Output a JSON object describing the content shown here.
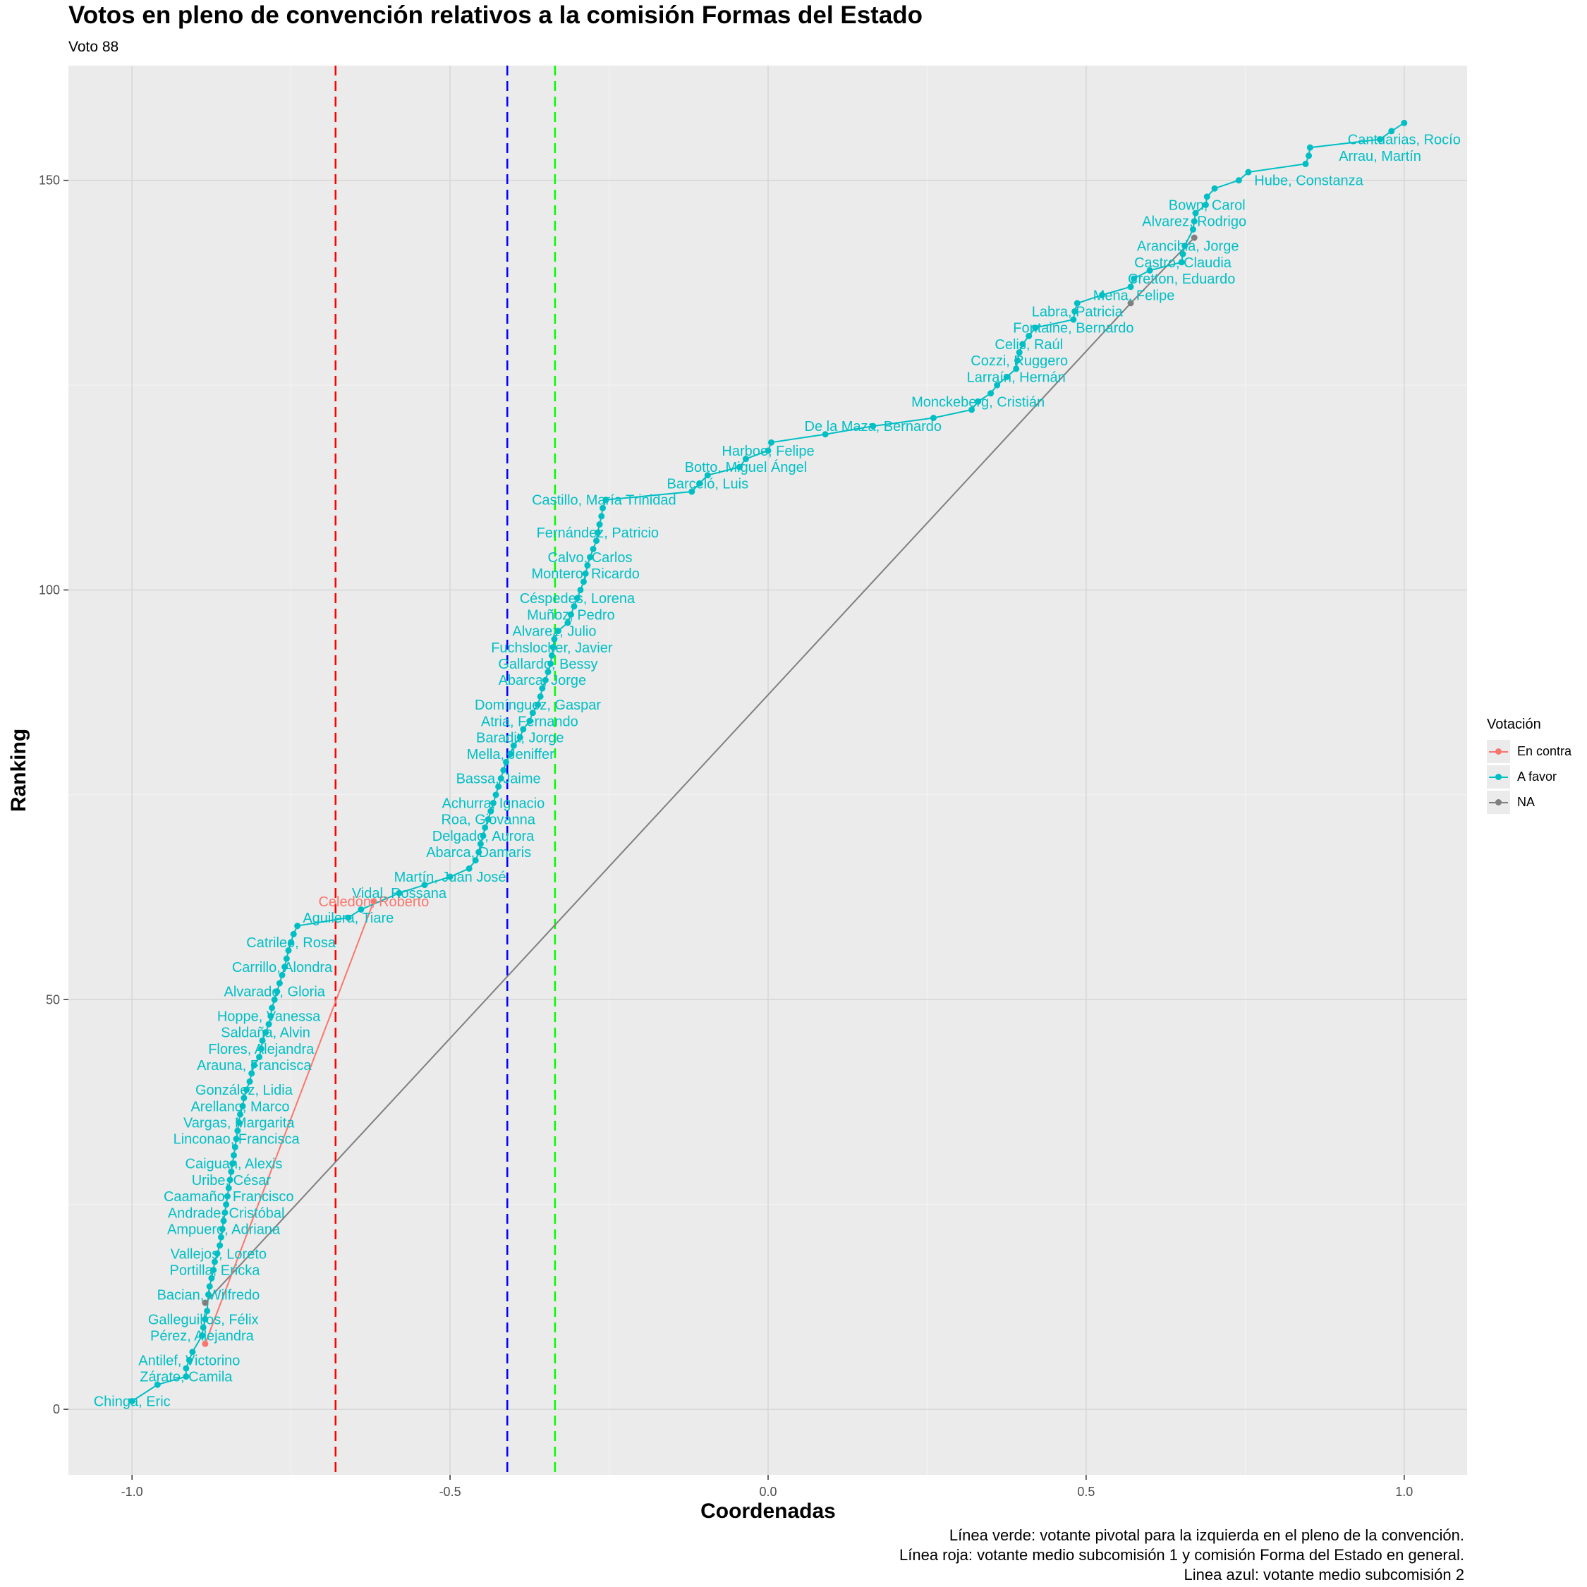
{
  "title": "Votos en pleno de convención relativos a la comisión Formas del Estado",
  "subtitle": "Voto 88",
  "caption": [
    "Línea verde: votante pivotal para la izquierda en el pleno de la convención.",
    "Línea roja: votante medio subcomisión 1 y comisión Forma del Estado en general.",
    "Linea azul: votante medio subcomisión 2"
  ],
  "legend": {
    "title": "Votación",
    "items": [
      {
        "label": "En contra",
        "color": "#f8766d"
      },
      {
        "label": "A favor",
        "color": "#00bfc4"
      },
      {
        "label": "NA",
        "color": "#7f7f7f"
      }
    ]
  },
  "colors": {
    "panel": "#ebebeb",
    "grid": "#ffffff",
    "red_line": "#ff0000",
    "blue_line": "#0000ff",
    "green_line": "#00ff00"
  },
  "chart_data": {
    "type": "scatter",
    "xlabel": "Coordenadas",
    "ylabel": "Ranking",
    "xlim": [
      -1.1,
      1.1
    ],
    "ylim": [
      -8,
      164
    ],
    "x_ticks": [
      -1.0,
      -0.5,
      0.0,
      0.5,
      1.0
    ],
    "x_tick_labels": [
      "-1.0",
      "-0.5",
      "0.0",
      "0.5",
      "1.0"
    ],
    "y_ticks": [
      0,
      50,
      100,
      150
    ],
    "y_tick_labels": [
      "0",
      "50",
      "100",
      "150"
    ],
    "vlines": [
      {
        "x": -0.68,
        "color": "#ff0000"
      },
      {
        "x": -0.41,
        "color": "#0000ff"
      },
      {
        "x": -0.335,
        "color": "#00ff00"
      }
    ],
    "legend_position": "right",
    "series": [
      {
        "name": "En contra",
        "color": "#f8766d",
        "points": [
          [
            -0.885,
            8
          ],
          [
            -0.62,
            62
          ]
        ],
        "labels": [
          {
            "x": -0.62,
            "y": 62,
            "text": "Celedón, Roberto"
          }
        ]
      },
      {
        "name": "NA",
        "color": "#7f7f7f",
        "points": [
          [
            -0.885,
            13
          ],
          [
            0.57,
            135
          ],
          [
            0.67,
            143
          ]
        ],
        "labels": []
      },
      {
        "name": "A favor",
        "color": "#00bfc4",
        "points": [
          [
            -1.0,
            1
          ],
          [
            -0.96,
            3
          ],
          [
            -0.915,
            4
          ],
          [
            -0.915,
            5
          ],
          [
            -0.91,
            6
          ],
          [
            -0.905,
            7
          ],
          [
            -0.89,
            9
          ],
          [
            -0.888,
            10
          ],
          [
            -0.885,
            11
          ],
          [
            -0.882,
            12
          ],
          [
            -0.88,
            14
          ],
          [
            -0.878,
            15
          ],
          [
            -0.875,
            16
          ],
          [
            -0.872,
            17
          ],
          [
            -0.87,
            18
          ],
          [
            -0.866,
            19
          ],
          [
            -0.862,
            20
          ],
          [
            -0.86,
            21
          ],
          [
            -0.858,
            22
          ],
          [
            -0.856,
            23
          ],
          [
            -0.854,
            24
          ],
          [
            -0.852,
            25
          ],
          [
            -0.85,
            26
          ],
          [
            -0.848,
            27
          ],
          [
            -0.846,
            28
          ],
          [
            -0.844,
            29
          ],
          [
            -0.842,
            30
          ],
          [
            -0.84,
            31
          ],
          [
            -0.838,
            32
          ],
          [
            -0.836,
            33
          ],
          [
            -0.834,
            34
          ],
          [
            -0.832,
            35
          ],
          [
            -0.83,
            36
          ],
          [
            -0.826,
            37
          ],
          [
            -0.824,
            38
          ],
          [
            -0.82,
            39
          ],
          [
            -0.815,
            40
          ],
          [
            -0.812,
            41
          ],
          [
            -0.808,
            42
          ],
          [
            -0.8,
            43
          ],
          [
            -0.797,
            44
          ],
          [
            -0.795,
            45
          ],
          [
            -0.79,
            46
          ],
          [
            -0.785,
            47
          ],
          [
            -0.782,
            48
          ],
          [
            -0.78,
            49
          ],
          [
            -0.776,
            50
          ],
          [
            -0.772,
            51
          ],
          [
            -0.768,
            52
          ],
          [
            -0.764,
            53
          ],
          [
            -0.76,
            54
          ],
          [
            -0.757,
            55
          ],
          [
            -0.754,
            56
          ],
          [
            -0.75,
            57
          ],
          [
            -0.746,
            58
          ],
          [
            -0.74,
            59
          ],
          [
            -0.66,
            60
          ],
          [
            -0.64,
            61
          ],
          [
            -0.58,
            63
          ],
          [
            -0.54,
            64
          ],
          [
            -0.5,
            65
          ],
          [
            -0.47,
            66
          ],
          [
            -0.46,
            67
          ],
          [
            -0.455,
            68
          ],
          [
            -0.452,
            69
          ],
          [
            -0.448,
            70
          ],
          [
            -0.445,
            71
          ],
          [
            -0.44,
            72
          ],
          [
            -0.436,
            73
          ],
          [
            -0.432,
            74
          ],
          [
            -0.428,
            75
          ],
          [
            -0.424,
            76
          ],
          [
            -0.42,
            77
          ],
          [
            -0.416,
            78
          ],
          [
            -0.412,
            79
          ],
          [
            -0.405,
            80
          ],
          [
            -0.4,
            81
          ],
          [
            -0.39,
            82
          ],
          [
            -0.385,
            83
          ],
          [
            -0.375,
            84
          ],
          [
            -0.37,
            85
          ],
          [
            -0.362,
            86
          ],
          [
            -0.358,
            87
          ],
          [
            -0.355,
            88
          ],
          [
            -0.35,
            89
          ],
          [
            -0.346,
            90
          ],
          [
            -0.342,
            91
          ],
          [
            -0.34,
            92
          ],
          [
            -0.338,
            93
          ],
          [
            -0.336,
            94
          ],
          [
            -0.33,
            95
          ],
          [
            -0.315,
            96
          ],
          [
            -0.31,
            97
          ],
          [
            -0.305,
            98
          ],
          [
            -0.3,
            99
          ],
          [
            -0.295,
            100
          ],
          [
            -0.29,
            101
          ],
          [
            -0.287,
            102
          ],
          [
            -0.284,
            103
          ],
          [
            -0.28,
            104
          ],
          [
            -0.275,
            105
          ],
          [
            -0.27,
            106
          ],
          [
            -0.268,
            107
          ],
          [
            -0.265,
            108
          ],
          [
            -0.262,
            109
          ],
          [
            -0.26,
            110
          ],
          [
            -0.255,
            111
          ],
          [
            -0.12,
            112
          ],
          [
            -0.108,
            113
          ],
          [
            -0.095,
            114
          ],
          [
            -0.045,
            115
          ],
          [
            -0.035,
            116
          ],
          [
            0.0,
            117
          ],
          [
            0.005,
            118
          ],
          [
            0.09,
            119
          ],
          [
            0.165,
            120
          ],
          [
            0.26,
            121
          ],
          [
            0.32,
            122
          ],
          [
            0.33,
            123
          ],
          [
            0.35,
            124
          ],
          [
            0.36,
            125
          ],
          [
            0.375,
            126
          ],
          [
            0.39,
            127
          ],
          [
            0.392,
            128
          ],
          [
            0.395,
            129
          ],
          [
            0.4,
            130
          ],
          [
            0.41,
            131
          ],
          [
            0.42,
            132
          ],
          [
            0.48,
            133
          ],
          [
            0.482,
            134
          ],
          [
            0.486,
            135
          ],
          [
            0.525,
            136
          ],
          [
            0.57,
            137
          ],
          [
            0.575,
            138
          ],
          [
            0.6,
            139
          ],
          [
            0.65,
            140
          ],
          [
            0.652,
            141
          ],
          [
            0.655,
            142
          ],
          [
            0.668,
            144
          ],
          [
            0.67,
            145
          ],
          [
            0.672,
            146
          ],
          [
            0.688,
            147
          ],
          [
            0.69,
            148
          ],
          [
            0.702,
            149
          ],
          [
            0.74,
            150
          ],
          [
            0.755,
            151
          ],
          [
            0.845,
            152
          ],
          [
            0.85,
            153
          ],
          [
            0.852,
            154
          ],
          [
            0.962,
            155
          ],
          [
            0.98,
            156
          ],
          [
            1.0,
            157
          ]
        ],
        "labels": [
          {
            "x": -1.0,
            "y": 1,
            "text": "Chinga, Eric"
          },
          {
            "x": -0.915,
            "y": 4,
            "text": "Zárate, Camila"
          },
          {
            "x": -0.91,
            "y": 6,
            "text": "Antilef, Victorino"
          },
          {
            "x": -0.89,
            "y": 9,
            "text": "Pérez, Alejandra"
          },
          {
            "x": -0.888,
            "y": 11,
            "text": "Galleguillos, Félix"
          },
          {
            "x": -0.88,
            "y": 14,
            "text": "Bacian, Wilfredo"
          },
          {
            "x": -0.87,
            "y": 17,
            "text": "Portilla, Ericka"
          },
          {
            "x": -0.864,
            "y": 19,
            "text": "Vallejos, Loreto"
          },
          {
            "x": -0.856,
            "y": 22,
            "text": "Ampuero, Adriana"
          },
          {
            "x": -0.852,
            "y": 24,
            "text": "Andrade, Cristóbal"
          },
          {
            "x": -0.848,
            "y": 26,
            "text": "Caamaño, Francisco"
          },
          {
            "x": -0.844,
            "y": 28,
            "text": "Uribe, César"
          },
          {
            "x": -0.84,
            "y": 30,
            "text": "Caiguan, Alexis"
          },
          {
            "x": -0.836,
            "y": 33,
            "text": "Linconao, Francisca"
          },
          {
            "x": -0.832,
            "y": 35,
            "text": "Vargas, Margarita"
          },
          {
            "x": -0.83,
            "y": 37,
            "text": "Arellano, Marco"
          },
          {
            "x": -0.824,
            "y": 39,
            "text": "González, Lidia"
          },
          {
            "x": -0.808,
            "y": 42,
            "text": "Arauna, Francisca"
          },
          {
            "x": -0.797,
            "y": 44,
            "text": "Flores, Alejandra"
          },
          {
            "x": -0.79,
            "y": 46,
            "text": "Saldaña, Alvin"
          },
          {
            "x": -0.785,
            "y": 48,
            "text": "Hoppe, Vanessa"
          },
          {
            "x": -0.776,
            "y": 51,
            "text": "Alvarado, Gloria"
          },
          {
            "x": -0.764,
            "y": 54,
            "text": "Carrillo, Alondra"
          },
          {
            "x": -0.75,
            "y": 57,
            "text": "Catrileo, Rosa"
          },
          {
            "x": -0.66,
            "y": 60,
            "text": "Aguilera, Tiare"
          },
          {
            "x": -0.58,
            "y": 63,
            "text": "Vidal, Rossana"
          },
          {
            "x": -0.5,
            "y": 65,
            "text": "Martín, Juan José"
          },
          {
            "x": -0.455,
            "y": 68,
            "text": "Abarca, Damaris"
          },
          {
            "x": -0.448,
            "y": 70,
            "text": "Delgado, Aurora"
          },
          {
            "x": -0.44,
            "y": 72,
            "text": "Roa, Giovanna"
          },
          {
            "x": -0.432,
            "y": 74,
            "text": "Achurra, Ignacio"
          },
          {
            "x": -0.424,
            "y": 77,
            "text": "Bassa, Jaime"
          },
          {
            "x": -0.405,
            "y": 80,
            "text": "Mella, Jeniffer"
          },
          {
            "x": -0.39,
            "y": 82,
            "text": "Baradit, Jorge"
          },
          {
            "x": -0.375,
            "y": 84,
            "text": "Atria, Fernando"
          },
          {
            "x": -0.362,
            "y": 86,
            "text": "Domínguez, Gaspar"
          },
          {
            "x": -0.355,
            "y": 89,
            "text": "Abarca, Jorge"
          },
          {
            "x": -0.346,
            "y": 91,
            "text": "Gallardo, Bessy"
          },
          {
            "x": -0.34,
            "y": 93,
            "text": "Fuchslocher, Javier"
          },
          {
            "x": -0.336,
            "y": 95,
            "text": "Alvarez, Julio"
          },
          {
            "x": -0.31,
            "y": 97,
            "text": "Muñoz, Pedro"
          },
          {
            "x": -0.3,
            "y": 99,
            "text": "Céspedes, Lorena"
          },
          {
            "x": -0.287,
            "y": 102,
            "text": "Montero, Ricardo"
          },
          {
            "x": -0.28,
            "y": 104,
            "text": "Calvo, Carlos"
          },
          {
            "x": -0.268,
            "y": 107,
            "text": "Fernández, Patricio"
          },
          {
            "x": -0.258,
            "y": 111,
            "text": "Castillo, María Trinidad"
          },
          {
            "x": -0.095,
            "y": 113,
            "text": "Barceló, Luis"
          },
          {
            "x": -0.035,
            "y": 115,
            "text": "Botto, Miguel Ángel"
          },
          {
            "x": 0.0,
            "y": 117,
            "text": "Harboe, Felipe"
          },
          {
            "x": 0.165,
            "y": 120,
            "text": "De la Maza, Bernardo"
          },
          {
            "x": 0.33,
            "y": 123,
            "text": "Monckeberg, Cristián"
          },
          {
            "x": 0.39,
            "y": 126,
            "text": "Larraín, Hernán"
          },
          {
            "x": 0.395,
            "y": 128,
            "text": "Cozzi, Ruggero"
          },
          {
            "x": 0.41,
            "y": 130,
            "text": "Celis, Raúl"
          },
          {
            "x": 0.48,
            "y": 132,
            "text": "Fontaine, Bernardo"
          },
          {
            "x": 0.486,
            "y": 134,
            "text": "Labra, Patricia"
          },
          {
            "x": 0.575,
            "y": 136,
            "text": "Mena, Felipe"
          },
          {
            "x": 0.65,
            "y": 138,
            "text": "Cretton, Eduardo"
          },
          {
            "x": 0.652,
            "y": 140,
            "text": "Castro, Claudia"
          },
          {
            "x": 0.66,
            "y": 142,
            "text": "Arancibia, Jorge"
          },
          {
            "x": 0.67,
            "y": 145,
            "text": "Alvarez, Rodrigo"
          },
          {
            "x": 0.69,
            "y": 147,
            "text": "Bown, Carol"
          },
          {
            "x": 0.85,
            "y": 150,
            "text": "Hube, Constanza"
          },
          {
            "x": 0.962,
            "y": 153,
            "text": "Arrau, Martín"
          },
          {
            "x": 1.0,
            "y": 155,
            "text": "Cantuarias, Rocío"
          }
        ]
      }
    ]
  }
}
